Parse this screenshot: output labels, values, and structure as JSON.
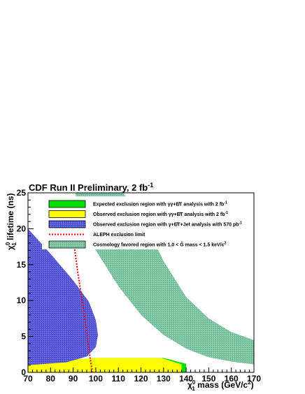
{
  "chart_data": {
    "type": "area",
    "title": "CDF Run II Preliminary, 2 fb",
    "title_superscript": "-1",
    "xlabel": "mass (GeV/c",
    "xlabel_symbol": "χ̃",
    "xlabel_symbol_sup": "0",
    "xlabel_symbol_sub": "1",
    "xlabel_sup": "2",
    "xlabel_close": ")",
    "ylabel": "lifetime (ns)",
    "ylabel_symbol": "χ",
    "ylabel_symbol_sup": "0",
    "ylabel_symbol_sub": "1",
    "xlim": [
      70,
      170
    ],
    "ylim": [
      0,
      25
    ],
    "x_ticks": [
      70,
      80,
      90,
      100,
      110,
      120,
      130,
      140,
      150,
      160,
      170
    ],
    "y_ticks": [
      0,
      5,
      10,
      15,
      20,
      25
    ],
    "grid": false,
    "legend_position": "top",
    "legend": [
      {
        "label": "Expected exclusion region with γγ+E̸T analysis with 2 fb",
        "sup": "-1",
        "color": "#00e000"
      },
      {
        "label": "Observed exclusion region with γγ+E̸T analysis with 2 fb",
        "sup": "-1",
        "color": "#ffff00"
      },
      {
        "label": "Observed exclusion region with γ+E̸T+Jet analysis with 570 pb",
        "sup": "-1",
        "color": "#5050d8"
      },
      {
        "label": "ALEPH exclusion limit",
        "sup": "",
        "color": "#ff0000"
      },
      {
        "label": "Cosmology favored region with 1.0 < G̃ mass < 1.5 keV/c",
        "sup": "2",
        "color": "#7ec4a0"
      }
    ],
    "series": [
      {
        "name": "Expected exclusion region with γγ+E̸T analysis with 2 fb-1",
        "kind": "area",
        "color": "#00e000",
        "points": [
          [
            70,
            0
          ],
          [
            70,
            1.0
          ],
          [
            80,
            1.6
          ],
          [
            100,
            2.0
          ],
          [
            130,
            2.0
          ],
          [
            140,
            1.2
          ],
          [
            140,
            0
          ]
        ]
      },
      {
        "name": "Observed exclusion region with γγ+E̸T analysis with 2 fb-1",
        "kind": "area",
        "color": "#ffff00",
        "points": [
          [
            70,
            0
          ],
          [
            70,
            1.0
          ],
          [
            80,
            1.6
          ],
          [
            100,
            2.0
          ],
          [
            129,
            2.0
          ],
          [
            138,
            1.1
          ],
          [
            138,
            0
          ]
        ]
      },
      {
        "name": "Observed exclusion region with γ+E̸T+Jet analysis with 570 pb-1",
        "kind": "area",
        "color": "#5050d8",
        "points": [
          [
            70,
            20.0
          ],
          [
            80,
            16.5
          ],
          [
            90,
            12.8
          ],
          [
            97,
            9.8
          ],
          [
            100,
            7.3
          ],
          [
            101,
            5.2
          ],
          [
            100,
            3.5
          ],
          [
            96,
            2.2
          ],
          [
            87,
            1.4
          ],
          [
            70,
            1.0
          ]
        ]
      },
      {
        "name": "ALEPH exclusion limit",
        "kind": "line",
        "color": "#ff0000",
        "points": [
          [
            90.5,
            17.5
          ],
          [
            92,
            14.0
          ],
          [
            94,
            10.0
          ],
          [
            96,
            5.5
          ],
          [
            97.5,
            2.0
          ],
          [
            98.5,
            0
          ]
        ]
      },
      {
        "name": "Cosmology favored region with 1.0 < G̃ mass < 1.5 keV/c2",
        "kind": "area",
        "color": "#7ec4a0",
        "points": [
          [
            91,
            25
          ],
          [
            112,
            25
          ],
          [
            120,
            22
          ],
          [
            130,
            15.5
          ],
          [
            140,
            10.5
          ],
          [
            150,
            7.5
          ],
          [
            160,
            5.6
          ],
          [
            170,
            4.5
          ],
          [
            170,
            1.1
          ],
          [
            160,
            1.5
          ],
          [
            150,
            2.1
          ],
          [
            140,
            3.3
          ],
          [
            130,
            5.2
          ],
          [
            120,
            8.0
          ],
          [
            110,
            12.0
          ],
          [
            100,
            17.0
          ],
          [
            92,
            21.5
          ]
        ]
      }
    ]
  }
}
